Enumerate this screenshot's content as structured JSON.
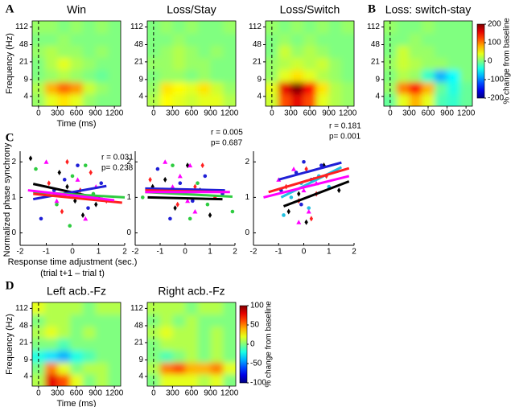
{
  "chart_data": [
    {
      "type": "heatmap",
      "panel": "A",
      "title": "Win",
      "xlabel": "Time (ms)",
      "ylabel": "Frequency (Hz)",
      "xlim": [
        -100,
        1300
      ],
      "ylim": [
        2.5,
        150
      ],
      "log_y": true,
      "xticks": [
        0,
        300,
        600,
        900,
        1200
      ],
      "yticks": [
        4,
        9,
        21,
        48,
        112
      ],
      "vline": 0,
      "colorscale": "jet",
      "zlim": [
        -200,
        200
      ],
      "x": [
        0,
        200,
        400,
        600,
        800,
        1000,
        1200
      ],
      "y": [
        3.4,
        6,
        10.8,
        19.4,
        35,
        62,
        112
      ],
      "z": [
        [
          10,
          40,
          60,
          40,
          10,
          0,
          0
        ],
        [
          20,
          80,
          110,
          90,
          30,
          10,
          0
        ],
        [
          0,
          10,
          20,
          10,
          0,
          -10,
          0
        ],
        [
          0,
          20,
          40,
          20,
          10,
          0,
          0
        ],
        [
          10,
          20,
          10,
          10,
          0,
          10,
          0
        ],
        [
          0,
          0,
          10,
          0,
          0,
          0,
          0
        ],
        [
          10,
          10,
          0,
          10,
          0,
          10,
          0
        ]
      ]
    },
    {
      "type": "heatmap",
      "title": "Loss/Stay",
      "xlim": [
        -100,
        1300
      ],
      "ylim": [
        2.5,
        150
      ],
      "log_y": true,
      "xticks": [
        0,
        300,
        600,
        900,
        1200
      ],
      "yticks": [
        4,
        9,
        21,
        48,
        112
      ],
      "vline": 0,
      "colorscale": "jet",
      "zlim": [
        -200,
        200
      ],
      "x": [
        0,
        200,
        400,
        600,
        800,
        1000,
        1200
      ],
      "y": [
        3.4,
        6,
        10.8,
        19.4,
        35,
        62,
        112
      ],
      "z": [
        [
          20,
          50,
          40,
          30,
          40,
          40,
          20
        ],
        [
          10,
          60,
          50,
          40,
          60,
          30,
          10
        ],
        [
          0,
          10,
          10,
          0,
          10,
          0,
          0
        ],
        [
          10,
          10,
          20,
          10,
          10,
          0,
          0
        ],
        [
          0,
          10,
          20,
          10,
          0,
          10,
          0
        ],
        [
          0,
          0,
          10,
          0,
          0,
          0,
          0
        ],
        [
          0,
          10,
          0,
          10,
          0,
          0,
          10
        ]
      ]
    },
    {
      "type": "heatmap",
      "title": "Loss/Switch",
      "xlim": [
        -100,
        1300
      ],
      "ylim": [
        2.5,
        150
      ],
      "log_y": true,
      "xticks": [
        0,
        300,
        600,
        900,
        1200
      ],
      "yticks": [
        4,
        9,
        21,
        48,
        112
      ],
      "vline": 0,
      "colorscale": "jet",
      "zlim": [
        -200,
        200
      ],
      "x": [
        0,
        200,
        400,
        600,
        800,
        1000,
        1200
      ],
      "y": [
        3.4,
        6,
        10.8,
        19.4,
        35,
        62,
        112
      ],
      "z": [
        [
          30,
          120,
          160,
          120,
          40,
          20,
          10
        ],
        [
          40,
          160,
          200,
          150,
          60,
          20,
          10
        ],
        [
          10,
          40,
          60,
          40,
          20,
          10,
          0
        ],
        [
          10,
          20,
          30,
          20,
          30,
          10,
          0
        ],
        [
          0,
          30,
          10,
          20,
          10,
          0,
          0
        ],
        [
          0,
          10,
          0,
          10,
          0,
          0,
          0
        ],
        [
          10,
          0,
          10,
          0,
          10,
          0,
          10
        ]
      ]
    },
    {
      "type": "heatmap",
      "panel": "B",
      "title": "Loss: switch-stay",
      "xlim": [
        -100,
        1300
      ],
      "ylim": [
        2.5,
        150
      ],
      "log_y": true,
      "xticks": [
        0,
        300,
        600,
        900,
        1200
      ],
      "yticks": [
        4,
        9,
        21,
        48,
        112
      ],
      "vline": 0,
      "colorscale": "jet",
      "zlim": [
        -200,
        200
      ],
      "colorbar": {
        "ticks": [
          200,
          100,
          0,
          -100,
          -200
        ],
        "label": "% change from baseline"
      },
      "x": [
        0,
        200,
        400,
        600,
        800,
        1000,
        1200
      ],
      "y": [
        3.4,
        6,
        10.8,
        19.4,
        35,
        62,
        112
      ],
      "z": [
        [
          -10,
          40,
          80,
          40,
          -20,
          -30,
          -10
        ],
        [
          10,
          100,
          150,
          80,
          -10,
          -40,
          -10
        ],
        [
          0,
          20,
          10,
          -30,
          -80,
          -50,
          0
        ],
        [
          10,
          30,
          20,
          10,
          10,
          0,
          0
        ],
        [
          0,
          30,
          10,
          10,
          0,
          0,
          0
        ],
        [
          0,
          0,
          10,
          0,
          0,
          0,
          0
        ],
        [
          10,
          0,
          0,
          10,
          0,
          0,
          0
        ]
      ]
    },
    {
      "type": "scatter",
      "panel": "C",
      "ylabel": "Normalized phase synchrony",
      "xlabel": "Response time adjustment (sec.)",
      "xlabel_note": "(trial t+1 – trial t)",
      "xlim": [
        -2,
        2
      ],
      "ylim": [
        -0.35,
        2.3
      ],
      "xticks": [
        -2,
        -1,
        0,
        1,
        2
      ],
      "yticks": [
        0,
        1,
        2
      ],
      "annotations": [
        "r = 0.031",
        "p= 0.238"
      ],
      "series": [
        {
          "color": "#000000",
          "marker": "diamond",
          "x": [
            -1.6,
            -0.5,
            0.1,
            0.4,
            -0.2,
            0.9
          ],
          "y": [
            2.1,
            1.7,
            0.9,
            0.5,
            1.3,
            0.8
          ],
          "fit_x": [
            -1.5,
            1.5
          ],
          "fit_y": [
            1.38,
            0.9
          ]
        },
        {
          "color": "#1f1fd6",
          "marker": "circle",
          "x": [
            -1.2,
            -0.3,
            0.2,
            0.6,
            -0.7,
            1.1
          ],
          "y": [
            0.4,
            1.5,
            1.9,
            0.7,
            1.2,
            1.4
          ],
          "fit_x": [
            -1.5,
            1.3
          ],
          "fit_y": [
            0.95,
            1.32
          ]
        },
        {
          "color": "#2ecc40",
          "marker": "circle",
          "x": [
            -1.4,
            -0.6,
            0,
            0.5,
            0.8,
            -0.1
          ],
          "y": [
            1.8,
            0.8,
            1.6,
            1.9,
            1.1,
            0.2
          ],
          "fit_x": [
            -1.5,
            2
          ],
          "fit_y": [
            1.15,
            1.0
          ]
        },
        {
          "color": "#ff2020",
          "marker": "diamond",
          "x": [
            -0.9,
            -0.4,
            0.3,
            0.7,
            1.3,
            -0.2
          ],
          "y": [
            1.4,
            0.6,
            1.2,
            1.7,
            0.9,
            2.0
          ],
          "fit_x": [
            -1.5,
            1.9
          ],
          "fit_y": [
            1.1,
            0.85
          ]
        },
        {
          "color": "#ff00ff",
          "marker": "triangle",
          "x": [
            -1.0,
            -0.3,
            0.2,
            0.5,
            0.9,
            -0.6
          ],
          "y": [
            2.0,
            1.1,
            1.5,
            0.4,
            1.3,
            0.9
          ],
          "fit_x": [
            -1.7,
            1.6
          ],
          "fit_y": [
            1.2,
            0.92
          ]
        }
      ]
    },
    {
      "type": "scatter",
      "xlim": [
        -2,
        2
      ],
      "ylim": [
        -0.35,
        2.3
      ],
      "xticks": [
        -2,
        -1,
        0,
        1,
        2
      ],
      "yticks": [
        0,
        1,
        2
      ],
      "annotations": [
        "r = 0.005",
        "p= 0.687"
      ],
      "series": [
        {
          "color": "#000000",
          "marker": "diamond",
          "x": [
            -1.3,
            -0.4,
            0.1,
            0.6,
            1.0,
            -0.8
          ],
          "y": [
            1.3,
            0.7,
            1.9,
            1.2,
            0.5,
            1.5
          ],
          "fit_x": [
            -1.5,
            1.5
          ],
          "fit_y": [
            1.0,
            0.95
          ]
        },
        {
          "color": "#1f1fd6",
          "marker": "circle",
          "x": [
            -1.1,
            -0.2,
            0.3,
            0.8,
            1.5,
            -0.6
          ],
          "y": [
            1.8,
            1.4,
            0.9,
            1.6,
            1.1,
            0.4
          ],
          "fit_x": [
            -1.6,
            1.6
          ],
          "fit_y": [
            1.25,
            1.2
          ]
        },
        {
          "color": "#2ecc40",
          "marker": "circle",
          "x": [
            -1.7,
            -0.5,
            0.2,
            0.9,
            1.9,
            0.5
          ],
          "y": [
            1.0,
            1.9,
            0.4,
            0.8,
            0.6,
            1.4
          ],
          "fit_x": [
            -1.6,
            1.9
          ],
          "fit_y": [
            1.15,
            1.02
          ]
        },
        {
          "color": "#ff2020",
          "marker": "diamond",
          "x": [
            -1.4,
            -0.3,
            0.4,
            0.7,
            1.2,
            -0.9
          ],
          "y": [
            1.5,
            0.8,
            1.3,
            1.9,
            1.0,
            1.2
          ],
          "fit_x": [
            -1.6,
            1.6
          ],
          "fit_y": [
            1.2,
            1.15
          ]
        },
        {
          "color": "#ff00ff",
          "marker": "triangle",
          "x": [
            -0.8,
            -0.2,
            0.1,
            0.4,
            0.2,
            -0.5
          ],
          "y": [
            2.0,
            1.6,
            0.9,
            0.6,
            1.9,
            1.3
          ],
          "fit_x": [
            -1.6,
            1.8
          ],
          "fit_y": [
            1.15,
            1.15
          ]
        }
      ]
    },
    {
      "type": "scatter",
      "xlim": [
        -2,
        2
      ],
      "ylim": [
        -0.35,
        2.3
      ],
      "xticks": [
        -2,
        -1,
        0,
        1,
        2
      ],
      "yticks": [
        0,
        1,
        2
      ],
      "annotations": [
        "r = 0.181",
        "p= 0.001"
      ],
      "series": [
        {
          "color": "#000000",
          "marker": "diamond",
          "x": [
            -0.6,
            -0.2,
            0.1,
            0.4,
            0.8,
            1.4
          ],
          "y": [
            0.6,
            1.1,
            0.3,
            1.5,
            1.9,
            1.2
          ],
          "fit_x": [
            -0.8,
            1.8
          ],
          "fit_y": [
            0.75,
            1.45
          ]
        },
        {
          "color": "#1f1fd6",
          "marker": "circle",
          "x": [
            -0.9,
            -0.3,
            0,
            0.3,
            0.7,
            -0.1
          ],
          "y": [
            1.2,
            1.7,
            2.0,
            1.5,
            1.9,
            0.8
          ],
          "fit_x": [
            -1,
            1.5
          ],
          "fit_y": [
            1.5,
            1.98
          ]
        },
        {
          "color": "#20c0e0",
          "marker": "circle",
          "x": [
            -0.5,
            -0.1,
            0.2,
            0.6,
            1.0,
            -0.8
          ],
          "y": [
            1.0,
            1.4,
            0.7,
            1.6,
            1.3,
            0.5
          ],
          "fit_x": [
            -0.9,
            1.5
          ],
          "fit_y": [
            1.0,
            1.85
          ]
        },
        {
          "color": "#ff2020",
          "marker": "diamond",
          "x": [
            -0.7,
            -0.2,
            0.1,
            0.5,
            0.9,
            0.3
          ],
          "y": [
            1.3,
            0.9,
            1.8,
            1.1,
            1.6,
            0.4
          ],
          "fit_x": [
            -1.4,
            1.8
          ],
          "fit_y": [
            1.15,
            1.82
          ]
        },
        {
          "color": "#ff00ff",
          "marker": "triangle",
          "x": [
            -1.0,
            -0.4,
            0,
            0.2,
            0.5,
            -0.2
          ],
          "y": [
            1.5,
            1.8,
            1.2,
            0.6,
            1.4,
            0.3
          ],
          "fit_x": [
            -1.6,
            1.8
          ],
          "fit_y": [
            1.0,
            1.6
          ]
        }
      ]
    },
    {
      "type": "heatmap",
      "panel": "D",
      "title": "Left acb.-Fz",
      "xlabel": "Time (ms)",
      "ylabel": "Frequency (Hz)",
      "xlim": [
        -100,
        1300
      ],
      "ylim": [
        2.5,
        150
      ],
      "log_y": true,
      "xticks": [
        0,
        300,
        600,
        900,
        1200
      ],
      "yticks": [
        4,
        9,
        21,
        48,
        112
      ],
      "vline": 0,
      "colorscale": "jet",
      "zlim": [
        -100,
        100
      ],
      "x": [
        0,
        200,
        400,
        600,
        800,
        1000,
        1200
      ],
      "y": [
        3.4,
        6,
        10.8,
        19.4,
        35,
        62,
        112
      ],
      "z": [
        [
          10,
          80,
          60,
          20,
          0,
          10,
          0
        ],
        [
          0,
          50,
          20,
          0,
          10,
          10,
          0
        ],
        [
          -20,
          -30,
          -40,
          -20,
          -10,
          0,
          0
        ],
        [
          0,
          0,
          -10,
          0,
          0,
          0,
          0
        ],
        [
          10,
          20,
          10,
          0,
          10,
          0,
          0
        ],
        [
          0,
          10,
          10,
          0,
          0,
          0,
          0
        ],
        [
          20,
          10,
          10,
          10,
          0,
          10,
          10
        ]
      ]
    },
    {
      "type": "heatmap",
      "title": "Right acb.-Fz",
      "xlim": [
        -100,
        1300
      ],
      "ylim": [
        2.5,
        150
      ],
      "log_y": true,
      "xticks": [
        0,
        300,
        600,
        900,
        1200
      ],
      "yticks": [
        4,
        9,
        21,
        48,
        112
      ],
      "vline": 0,
      "colorscale": "jet",
      "zlim": [
        -100,
        100
      ],
      "colorbar": {
        "ticks": [
          100,
          50,
          0,
          -50,
          -100
        ],
        "label": "% change from baseline"
      },
      "x": [
        0,
        200,
        400,
        600,
        800,
        1000,
        1200
      ],
      "y": [
        3.4,
        6,
        10.8,
        19.4,
        35,
        62,
        112
      ],
      "z": [
        [
          0,
          20,
          20,
          20,
          10,
          20,
          0
        ],
        [
          10,
          50,
          60,
          40,
          40,
          50,
          20
        ],
        [
          0,
          -10,
          0,
          10,
          0,
          10,
          0
        ],
        [
          0,
          10,
          10,
          10,
          0,
          10,
          0
        ],
        [
          10,
          20,
          10,
          10,
          0,
          10,
          0
        ],
        [
          0,
          10,
          0,
          10,
          0,
          0,
          0
        ],
        [
          10,
          10,
          10,
          0,
          10,
          10,
          0
        ]
      ]
    }
  ]
}
